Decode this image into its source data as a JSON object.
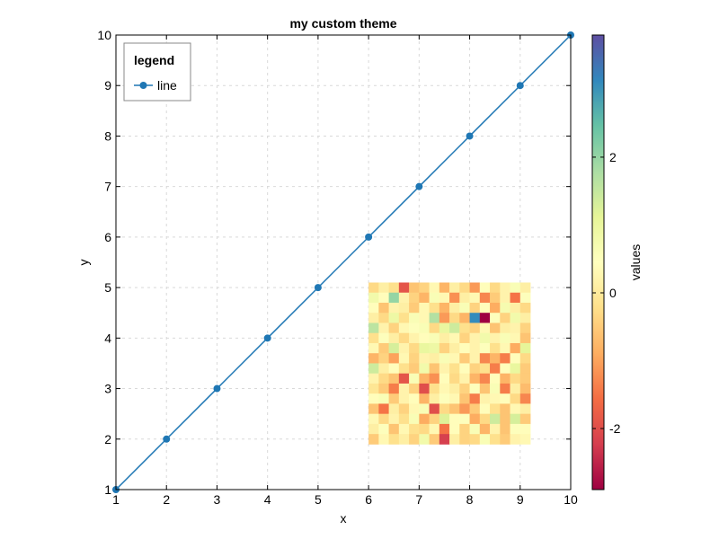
{
  "chart_data": {
    "type": "line",
    "title": "my custom theme",
    "xlabel": "x",
    "ylabel": "y",
    "xlim": [
      1,
      10
    ],
    "ylim": [
      1,
      10
    ],
    "xticks": [
      1,
      2,
      3,
      4,
      5,
      6,
      7,
      8,
      9,
      10
    ],
    "yticks": [
      1,
      2,
      3,
      4,
      5,
      6,
      7,
      8,
      9,
      10
    ],
    "grid": true,
    "legend": {
      "title": "legend",
      "position": "top-left"
    },
    "series": [
      {
        "name": "line",
        "color": "#1f77b4",
        "x": [
          1,
          2,
          3,
          4,
          5,
          6,
          7,
          8,
          9,
          10
        ],
        "y": [
          1,
          2,
          3,
          4,
          5,
          6,
          7,
          8,
          9,
          10
        ]
      }
    ],
    "heatmap": {
      "x_range": [
        6,
        9.2
      ],
      "y_range": [
        1.9,
        5.1
      ],
      "rows": 16,
      "cols": 16,
      "values": [
        [
          -0.3,
          0.1,
          -0.2,
          -1.9,
          -0.6,
          -0.4,
          0.3,
          -0.8,
          0.1,
          -0.3,
          -1.1,
          0.4,
          -0.3,
          0.2,
          0.6,
          0.1
        ],
        [
          0.8,
          0.4,
          2.0,
          0.2,
          -0.4,
          -0.8,
          0.6,
          0.3,
          -1.2,
          0.1,
          0.3,
          -1.3,
          -0.5,
          0.2,
          -1.5,
          0.5
        ],
        [
          0.4,
          -0.6,
          0.2,
          0.1,
          -0.5,
          0.3,
          -0.2,
          -0.8,
          0.1,
          0.6,
          -0.4,
          0.4,
          -0.9,
          0.7,
          0.1,
          -0.3
        ],
        [
          0.1,
          -0.3,
          0.9,
          -0.2,
          0.6,
          0.3,
          1.7,
          -1.1,
          -0.3,
          -0.8,
          3.1,
          -2.9,
          0.5,
          -0.4,
          0.8,
          0.1
        ],
        [
          1.6,
          0.2,
          -0.4,
          0.3,
          0.5,
          0.6,
          -0.3,
          1.0,
          1.4,
          -0.2,
          -0.4,
          0.3,
          -0.6,
          0.1,
          0.2,
          -0.4
        ],
        [
          -0.2,
          0.5,
          0.1,
          -0.3,
          0.2,
          0.4,
          0.6,
          0.1,
          0.3,
          -0.4,
          0.2,
          0.8,
          0.2,
          0.6,
          0.3,
          -0.6
        ],
        [
          0.3,
          -0.5,
          1.3,
          0.2,
          -0.3,
          1.0,
          0.9,
          -0.4,
          0.1,
          0.4,
          0.2,
          0.5,
          -0.2,
          0.3,
          -0.9,
          1.1
        ],
        [
          -0.8,
          -0.4,
          -1.0,
          0.3,
          -0.4,
          0.2,
          0.1,
          0.6,
          0.3,
          -0.5,
          0.2,
          -1.3,
          -0.8,
          -1.4,
          0.4,
          -0.3
        ],
        [
          1.4,
          0.1,
          0.4,
          -0.2,
          -0.5,
          0.8,
          -0.6,
          0.2,
          -0.2,
          0.4,
          -0.4,
          -0.2,
          -1.4,
          0.4,
          1.0,
          -0.5
        ],
        [
          0.2,
          -0.3,
          -0.6,
          -1.9,
          0.6,
          -0.8,
          -1.2,
          0.4,
          -0.3,
          0.2,
          -0.8,
          -1.3,
          0.4,
          -0.8,
          -0.3,
          -0.5
        ],
        [
          -0.1,
          -0.5,
          -1.4,
          0.2,
          -0.4,
          -2.0,
          -0.2,
          0.3,
          0.1,
          -0.4,
          0.5,
          -0.6,
          0.6,
          -1.4,
          0.1,
          -0.7
        ],
        [
          0.4,
          0.6,
          -0.5,
          0.2,
          0.4,
          -0.8,
          0.1,
          0.5,
          0.3,
          -0.6,
          -1.4,
          0.2,
          0.3,
          0.4,
          -0.3,
          -1.3
        ],
        [
          -0.6,
          -1.5,
          0.1,
          -0.4,
          0.3,
          0.6,
          -2.0,
          -0.3,
          -0.6,
          -1.1,
          -0.5,
          0.4,
          -0.2,
          -0.6,
          0.3,
          0.1
        ],
        [
          0.3,
          -0.3,
          0.2,
          -0.2,
          0.6,
          -0.9,
          -0.4,
          1.2,
          0.4,
          0.5,
          -0.9,
          -0.3,
          1.4,
          -0.6,
          1.3,
          -0.5
        ],
        [
          0.1,
          0.5,
          -0.6,
          0.3,
          -0.2,
          -0.3,
          0.3,
          -1.5,
          0.4,
          -0.4,
          0.6,
          -0.8,
          0.2,
          -0.6,
          0.5,
          0.4
        ],
        [
          -0.5,
          0.3,
          -0.2,
          0.1,
          -0.4,
          0.8,
          -0.5,
          -2.2,
          0.1,
          -0.4,
          -0.3,
          0.6,
          -0.2,
          -0.5,
          0.2,
          0.3
        ]
      ]
    },
    "colorbar": {
      "label": "values",
      "range": [
        -2.9,
        3.8
      ],
      "ticks": [
        -2,
        0,
        2
      ],
      "colormap": "Spectral"
    }
  }
}
